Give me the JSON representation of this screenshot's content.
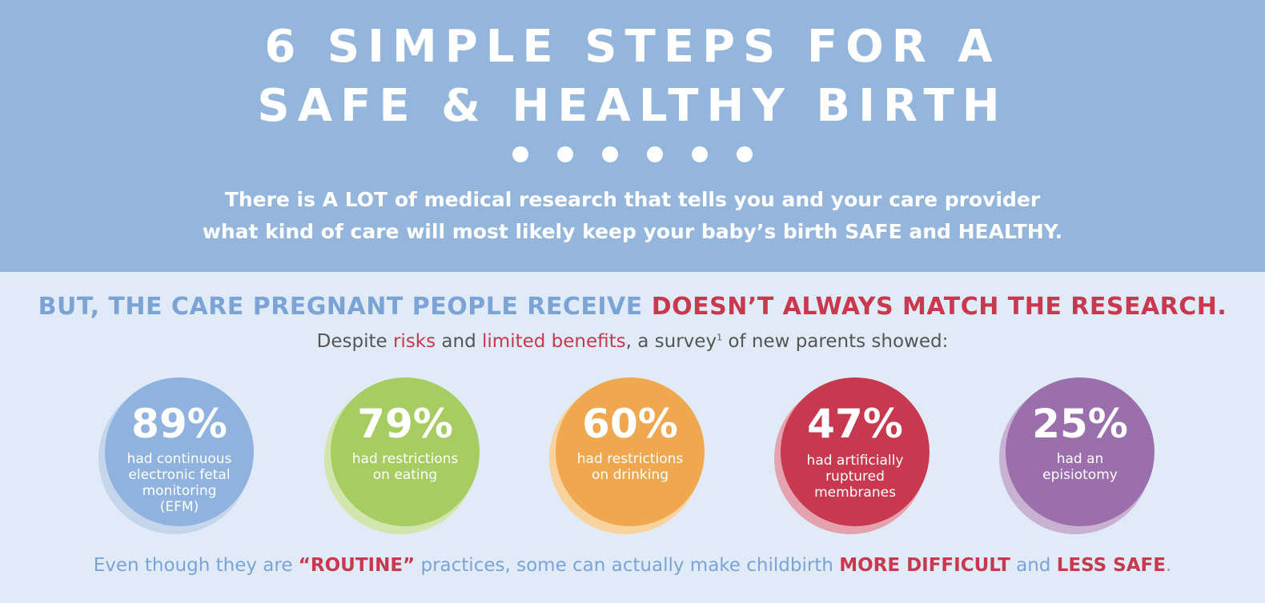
{
  "header": {
    "title_line1": "6 SIMPLE STEPS FOR A",
    "title_line2": "SAFE & HEALTHY BIRTH",
    "dot_count": 6,
    "intro_line1": "There is A LOT of medical research that tells you and your care provider",
    "intro_line2": "what kind of care will most likely keep your baby’s birth SAFE and HEALTHY."
  },
  "headline": {
    "part1": "BUT, THE CARE PREGNANT PEOPLE RECEIVE ",
    "part2": "DOESN’T ALWAYS MATCH THE RESEARCH."
  },
  "subhead": {
    "t1": "Despite ",
    "risks": "risks",
    "t2": " and ",
    "limited": "limited benefits",
    "t3": ", a survey",
    "footnote": "1",
    "t4": " of new parents showed:"
  },
  "stats": [
    {
      "value": "89%",
      "lines": [
        "had continuous",
        "electronic fetal",
        "monitoring",
        "(EFM)"
      ],
      "color": "#8fb3de",
      "halo": "#c5d6ec"
    },
    {
      "value": "79%",
      "lines": [
        "had restrictions",
        "on eating"
      ],
      "color": "#a6cc62",
      "halo": "#d2e5ad"
    },
    {
      "value": "60%",
      "lines": [
        "had restrictions",
        "on drinking"
      ],
      "color": "#f0a850",
      "halo": "#f8d39e"
    },
    {
      "value": "47%",
      "lines": [
        "had artificially",
        "ruptured",
        "membranes"
      ],
      "color": "#c8384f",
      "halo": "#e3a2ae"
    },
    {
      "value": "25%",
      "lines": [
        "had an",
        "episiotomy"
      ],
      "color": "#9b6fac",
      "halo": "#c8b1d3"
    }
  ],
  "footer": {
    "t1": "Even though they are ",
    "routine": "“ROUTINE”",
    "t2": " practices, some can actually make childbirth ",
    "more_difficult": "MORE DIFFICULT",
    "t3": " and ",
    "less_safe": "LESS SAFE",
    "t4": "."
  },
  "colors": {
    "header_bg": "#94b6dd",
    "page_bg": "#e0ebf7",
    "accent_blue": "#7ba3d6",
    "accent_red": "#c8384f"
  }
}
